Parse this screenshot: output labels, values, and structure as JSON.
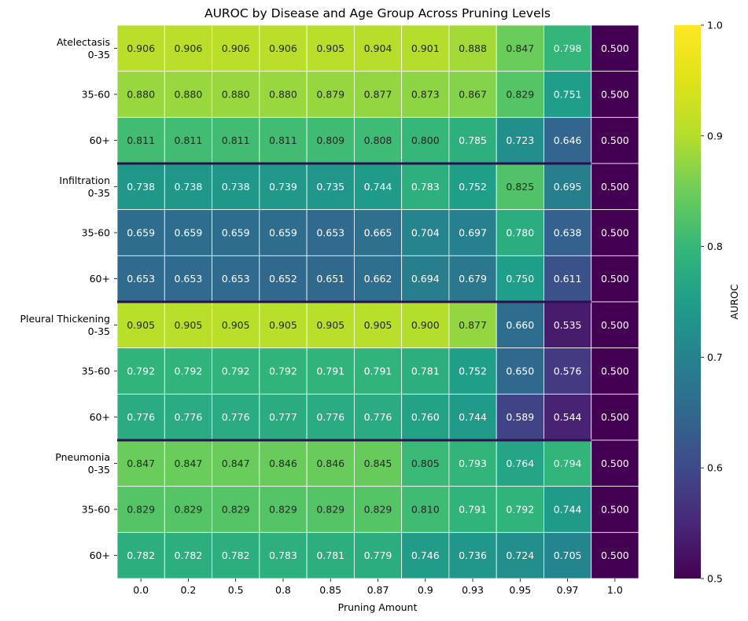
{
  "chart_data": {
    "type": "heatmap",
    "title": "AUROC by Disease and Age Group Across Pruning Levels",
    "xlabel": "Pruning Amount",
    "ylabel": "",
    "colorbar_label": "AUROC",
    "colormap": "viridis",
    "vmin": 0.5,
    "vmax": 1.0,
    "colorbar_ticks": [
      "0.5",
      "0.6",
      "0.7",
      "0.8",
      "0.9",
      "1.0"
    ],
    "x_categories": [
      "0.0",
      "0.2",
      "0.5",
      "0.8",
      "0.85",
      "0.87",
      "0.9",
      "0.93",
      "0.95",
      "0.97",
      "1.0"
    ],
    "y_categories": [
      "Atelectasis\n0-35",
      "35-60",
      "60+",
      "Infiltration\n0-35",
      "35-60",
      "60+",
      "Pleural Thickening\n0-35",
      "35-60",
      "60+",
      "Pneumonia\n0-35",
      "35-60",
      "60+"
    ],
    "group_separators_after_rows": [
      2,
      5,
      8
    ],
    "separator_color": "#2d0f4e",
    "values": [
      [
        0.906,
        0.906,
        0.906,
        0.906,
        0.905,
        0.904,
        0.901,
        0.888,
        0.847,
        0.798,
        0.5
      ],
      [
        0.88,
        0.88,
        0.88,
        0.88,
        0.879,
        0.877,
        0.873,
        0.867,
        0.829,
        0.751,
        0.5
      ],
      [
        0.811,
        0.811,
        0.811,
        0.811,
        0.809,
        0.808,
        0.8,
        0.785,
        0.723,
        0.646,
        0.5
      ],
      [
        0.738,
        0.738,
        0.738,
        0.739,
        0.735,
        0.744,
        0.783,
        0.752,
        0.825,
        0.695,
        0.5
      ],
      [
        0.659,
        0.659,
        0.659,
        0.659,
        0.653,
        0.665,
        0.704,
        0.697,
        0.78,
        0.638,
        0.5
      ],
      [
        0.653,
        0.653,
        0.653,
        0.652,
        0.651,
        0.662,
        0.694,
        0.679,
        0.75,
        0.611,
        0.5
      ],
      [
        0.905,
        0.905,
        0.905,
        0.905,
        0.905,
        0.905,
        0.9,
        0.877,
        0.66,
        0.535,
        0.5
      ],
      [
        0.792,
        0.792,
        0.792,
        0.792,
        0.791,
        0.791,
        0.781,
        0.752,
        0.65,
        0.576,
        0.5
      ],
      [
        0.776,
        0.776,
        0.776,
        0.777,
        0.776,
        0.776,
        0.76,
        0.744,
        0.589,
        0.544,
        0.5
      ],
      [
        0.847,
        0.847,
        0.847,
        0.846,
        0.846,
        0.845,
        0.805,
        0.793,
        0.764,
        0.794,
        0.5
      ],
      [
        0.829,
        0.829,
        0.829,
        0.829,
        0.829,
        0.829,
        0.81,
        0.791,
        0.792,
        0.744,
        0.5
      ],
      [
        0.782,
        0.782,
        0.782,
        0.783,
        0.781,
        0.779,
        0.746,
        0.736,
        0.724,
        0.705,
        0.5
      ]
    ]
  }
}
